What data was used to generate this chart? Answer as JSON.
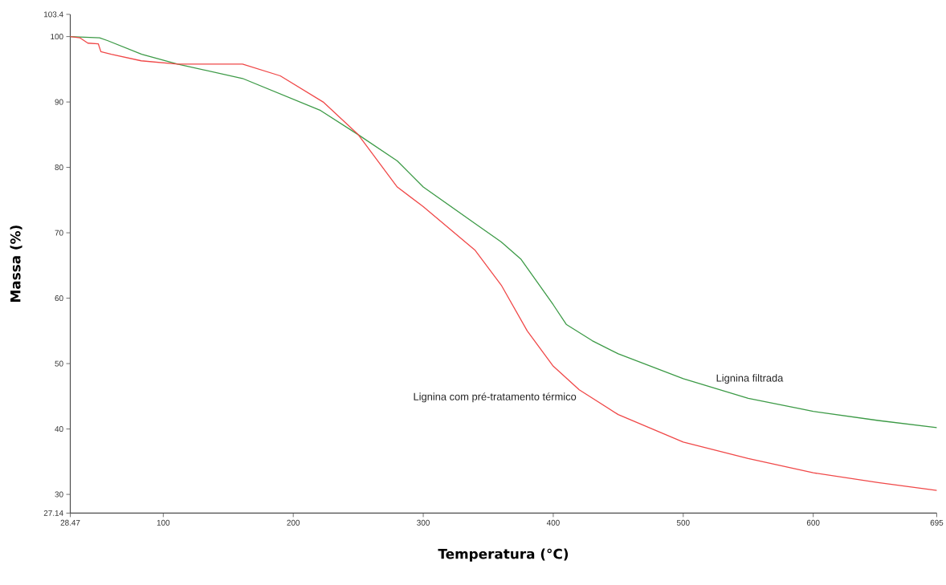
{
  "chart_data": {
    "type": "line",
    "xlabel": "Temperatura (°C)",
    "ylabel": "Massa (%)",
    "xlim": [
      28.47,
      695
    ],
    "ylim": [
      27.14,
      103.4
    ],
    "xticks": [
      28.47,
      100,
      200,
      300,
      400,
      500,
      600,
      695
    ],
    "yticks": [
      27.14,
      30,
      40,
      50,
      60,
      70,
      80,
      90,
      100,
      103.4
    ],
    "series": [
      {
        "name": "Lignina filtrada",
        "color": "#3c9a46",
        "x": [
          28.47,
          51,
          57,
          83.4,
          111,
          161,
          221,
          250,
          280,
          300,
          340,
          360,
          375,
          400,
          410,
          430,
          450,
          500,
          550,
          600,
          650,
          695
        ],
        "values": [
          100,
          99.8,
          99.4,
          97.3,
          95.8,
          93.6,
          88.7,
          85,
          81,
          77,
          71.4,
          68.6,
          66,
          59,
          56,
          53.5,
          51.5,
          47.7,
          44.7,
          42.7,
          41.3,
          40.2
        ]
      },
      {
        "name": "Lignina com pré-tratamento térmico",
        "color": "#f04848",
        "x": [
          28.47,
          36,
          42,
          50,
          52,
          60,
          83,
          111,
          161,
          190,
          223,
          250,
          280,
          300,
          340,
          360,
          380,
          400,
          420,
          450,
          500,
          550,
          600,
          650,
          695
        ],
        "values": [
          100,
          99.8,
          99,
          98.9,
          97.7,
          97.3,
          96.3,
          95.8,
          95.8,
          94,
          90,
          85,
          77,
          74,
          67.3,
          62,
          55,
          49.6,
          46,
          42.2,
          38,
          35.5,
          33.3,
          31.8,
          30.6
        ]
      }
    ]
  }
}
